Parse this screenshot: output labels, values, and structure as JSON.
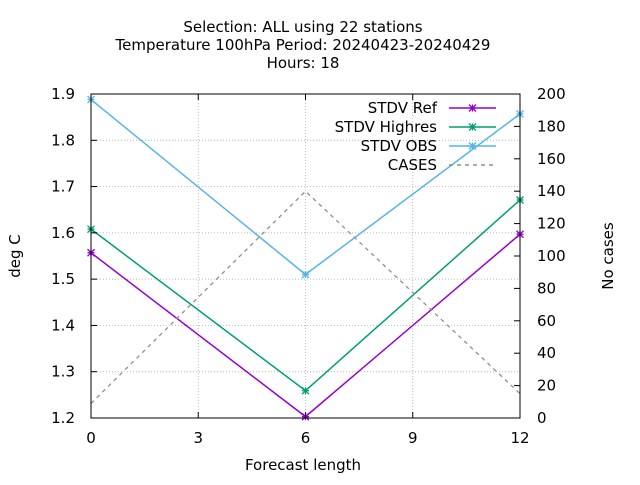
{
  "chart_data": {
    "type": "line",
    "title_lines": [
      "Selection: ALL using    22 stations",
      "Temperature 100hPa   Period: 20240423-20240429",
      "Hours:  18"
    ],
    "xlabel": "Forecast length",
    "ylabel": "deg C",
    "y2label": "No cases",
    "x": [
      0,
      6,
      12
    ],
    "xlim": [
      0,
      12
    ],
    "xticks": [
      0,
      3,
      6,
      9,
      12
    ],
    "ylim": [
      1.2,
      1.9
    ],
    "yticks": [
      1.2,
      1.3,
      1.4,
      1.5,
      1.6,
      1.7,
      1.8,
      1.9
    ],
    "y2lim": [
      0,
      200
    ],
    "y2ticks": [
      0,
      20,
      40,
      60,
      80,
      100,
      120,
      140,
      160,
      180,
      200
    ],
    "grid": true,
    "legend_position": "top-right",
    "series": [
      {
        "name": "STDV Ref",
        "axis": "y",
        "values": [
          1.557,
          1.203,
          1.597
        ],
        "color": "#9400d3",
        "style": "solid",
        "marker": "x"
      },
      {
        "name": "STDV Highres",
        "axis": "y",
        "values": [
          1.608,
          1.259,
          1.671
        ],
        "color": "#009e73",
        "style": "solid",
        "marker": "x"
      },
      {
        "name": "STDV OBS",
        "axis": "y",
        "values": [
          1.888,
          1.51,
          1.857
        ],
        "color": "#56b4e9",
        "style": "solid",
        "marker": "x"
      },
      {
        "name": "CASES",
        "axis": "y2",
        "values": [
          9,
          140,
          15
        ],
        "color": "#909090",
        "style": "dashed",
        "marker": "none"
      }
    ]
  }
}
